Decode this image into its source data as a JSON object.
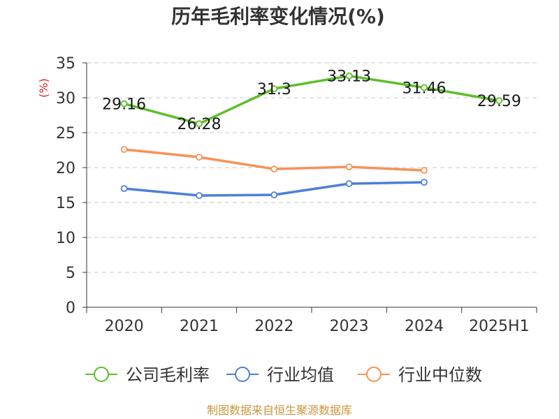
{
  "chart_data": {
    "type": "line",
    "title": "历年毛利率变化情况(%)",
    "ylabel": "(%)",
    "categories": [
      "2020",
      "2021",
      "2022",
      "2023",
      "2024",
      "2025H1"
    ],
    "ylim": [
      0,
      35
    ],
    "yticks": [
      "0",
      "5",
      "10",
      "15",
      "20",
      "25",
      "30",
      "35"
    ],
    "grid": true,
    "legend_position": "bottom",
    "series": [
      {
        "name": "公司毛利率",
        "color": "#5cbf2a",
        "values": [
          29.16,
          26.28,
          31.3,
          33.13,
          31.46,
          29.59
        ],
        "labels": [
          "29.16",
          "26.28",
          "31.3",
          "33.13",
          "31.46",
          "29.59"
        ]
      },
      {
        "name": "行业均值",
        "color": "#4e7fd9",
        "values": [
          17.0,
          16.0,
          16.1,
          17.7,
          17.9,
          null
        ]
      },
      {
        "name": "行业中位数",
        "color": "#f79154",
        "values": [
          22.6,
          21.5,
          19.8,
          20.1,
          19.6,
          null
        ]
      }
    ],
    "source": "制图数据来自恒生聚源数据库"
  }
}
